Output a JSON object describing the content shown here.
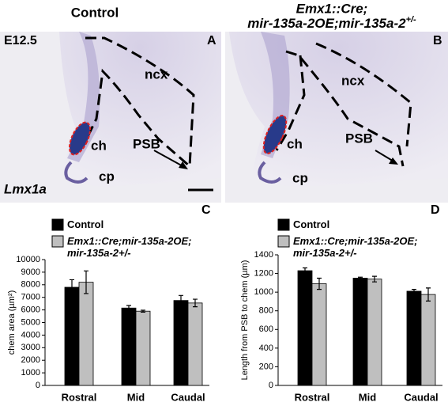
{
  "figure": {
    "titles": {
      "control": "Control",
      "mutant_line1": "Emx1::Cre;",
      "mutant_line2": "mir-135a-2OE;mir-135a-2",
      "mutant_sup": "+/-"
    },
    "panel_a": {
      "letter": "A",
      "stage": "E12.5",
      "ncx": "ncx",
      "ch": "ch",
      "psb": "PSB",
      "cp": "cp",
      "gene": "Lmx1a"
    },
    "panel_b": {
      "letter": "B",
      "ncx": "ncx",
      "ch": "ch",
      "psb": "PSB",
      "cp": "cp"
    }
  },
  "chart_data": [
    {
      "type": "bar",
      "panel": "C",
      "y_label": "chem area (µm²)",
      "categories": [
        "Rostral",
        "Mid",
        "Caudal"
      ],
      "series": [
        {
          "name": "Control",
          "color": "#000000",
          "values": [
            7800,
            6150,
            6750
          ],
          "errors": [
            600,
            200,
            400
          ]
        },
        {
          "name": "Emx1::Cre;mir-135a-2OE; mir-135a-2+/-",
          "color": "#bfbfbf",
          "values": [
            8200,
            5900,
            6550
          ],
          "errors": [
            900,
            80,
            300
          ]
        }
      ],
      "ylim": [
        0,
        10000
      ],
      "yticks": [
        0,
        1000,
        2000,
        3000,
        4000,
        5000,
        6000,
        7000,
        8000,
        9000,
        10000
      ]
    },
    {
      "type": "bar",
      "panel": "D",
      "y_label": "Length from PSB to chem (µm)",
      "categories": [
        "Rostral",
        "Mid",
        "Caudal"
      ],
      "series": [
        {
          "name": "Control",
          "color": "#000000",
          "values": [
            1230,
            1150,
            1010
          ],
          "errors": [
            30,
            10,
            20
          ]
        },
        {
          "name": "Emx1::Cre;mir-135a-2OE; mir-135a-2+/-",
          "color": "#bfbfbf",
          "values": [
            1090,
            1140,
            975
          ],
          "errors": [
            60,
            30,
            70
          ]
        }
      ],
      "ylim": [
        0,
        1400
      ],
      "yticks": [
        0,
        200,
        400,
        600,
        800,
        1000,
        1200,
        1400
      ]
    }
  ]
}
